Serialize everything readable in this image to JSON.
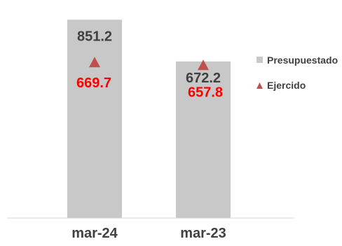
{
  "chart_data": {
    "type": "bar",
    "categories": [
      "mar-24",
      "mar-23"
    ],
    "series": [
      {
        "name": "Presupuestado",
        "values": [
          851.2,
          672.2
        ],
        "color": "#c8c8c8",
        "mark": "bar"
      },
      {
        "name": "Ejercido",
        "values": [
          669.7,
          657.8
        ],
        "color": "#c0504d",
        "mark": "triangle"
      }
    ],
    "data_labels": {
      "bar": [
        "851.2",
        "672.2"
      ],
      "marker": [
        "669.7",
        "657.8"
      ],
      "marker_label_color": "#ff0000"
    },
    "ylim": [
      0,
      900
    ],
    "grid": false,
    "legend": {
      "position": "right",
      "entries": [
        "Presupuestado",
        "Ejercido"
      ]
    }
  }
}
